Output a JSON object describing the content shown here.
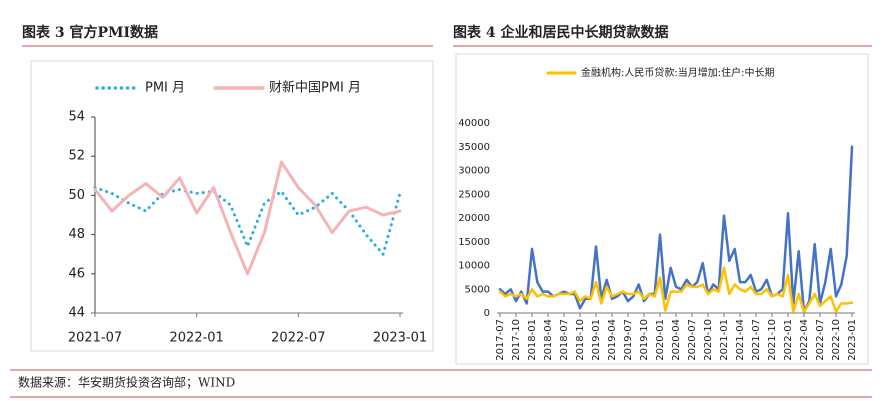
{
  "chart_data": [
    {
      "type": "line",
      "title": "图表 3 官方PMI数据",
      "categories": [
        "2021-07",
        null,
        null,
        null,
        null,
        null,
        "2022-01",
        null,
        null,
        null,
        null,
        null,
        "2022-07",
        null,
        null,
        null,
        null,
        null,
        "2023-01"
      ],
      "series": [
        {
          "name": "PMI 月",
          "color": "#2aaee0",
          "line_style": "dotted",
          "values": [
            50.4,
            50.1,
            49.6,
            49.2,
            50.1,
            50.3,
            50.1,
            50.2,
            49.5,
            47.4,
            49.6,
            50.2,
            49.0,
            49.4,
            50.1,
            49.2,
            48.0,
            47.0,
            50.1
          ]
        },
        {
          "name": "财新中国PMI 月",
          "color": "#f4b4b4",
          "line_style": "solid",
          "values": [
            50.3,
            49.2,
            50.0,
            50.6,
            49.9,
            50.9,
            49.1,
            50.4,
            48.1,
            46.0,
            48.1,
            51.7,
            50.4,
            49.5,
            48.1,
            49.2,
            49.4,
            49.0,
            49.2
          ]
        }
      ],
      "ylim": [
        44,
        54
      ],
      "yticks": [
        44,
        46,
        48,
        50,
        52,
        54
      ]
    },
    {
      "type": "line",
      "title": "图表 4 企业和居民中长期贷款数据",
      "categories": [
        "2017-07",
        null,
        null,
        "2017-10",
        null,
        null,
        "2018-01",
        null,
        null,
        "2018-04",
        null,
        null,
        "2018-07",
        null,
        null,
        "2018-10",
        null,
        null,
        "2019-01",
        null,
        null,
        "2019-04",
        null,
        null,
        "2019-07",
        null,
        null,
        "2019-10",
        null,
        null,
        "2020-01",
        null,
        null,
        "2020-04",
        null,
        null,
        "2020-07",
        null,
        null,
        "2020-10",
        null,
        null,
        "2021-01",
        null,
        null,
        "2021-04",
        null,
        null,
        "2021-07",
        null,
        null,
        "2021-10",
        null,
        null,
        "2022-01",
        null,
        null,
        "2022-04",
        null,
        null,
        "2022-07",
        null,
        null,
        "2022-10",
        null,
        null,
        "2023-01"
      ],
      "series": [
        {
          "color": "#4472c4",
          "line_style": "solid",
          "values": [
            5000,
            4000,
            5000,
            2500,
            4500,
            2000,
            13500,
            6500,
            4500,
            4500,
            3500,
            4000,
            4500,
            4000,
            4000,
            1000,
            3000,
            3000,
            14000,
            3000,
            7000,
            3000,
            3500,
            4500,
            2500,
            3500,
            6000,
            2500,
            4000,
            4000,
            16500,
            3000,
            9500,
            5500,
            5000,
            7000,
            5500,
            6500,
            10500,
            4000,
            6000,
            5000,
            20500,
            11000,
            13500,
            6500,
            6500,
            8000,
            4500,
            5000,
            7000,
            3500,
            4000,
            5000,
            21000,
            2000,
            13000,
            200,
            2500,
            14500,
            2000,
            6500,
            13500,
            3500,
            6000,
            12000,
            35000
          ]
        },
        {
          "name": "金融机构:人民币贷款:当月增加:住户:中长期",
          "color": "#ffc000",
          "line_style": "solid",
          "values": [
            4500,
            3500,
            4000,
            3500,
            4000,
            3000,
            5000,
            3500,
            4000,
            3500,
            3500,
            4000,
            4000,
            4000,
            4500,
            2500,
            3500,
            3000,
            6500,
            2000,
            5500,
            3500,
            4000,
            4500,
            4000,
            4000,
            4500,
            3000,
            4000,
            3500,
            7500,
            500,
            4500,
            4500,
            4500,
            6000,
            5500,
            5500,
            6000,
            4000,
            5000,
            4500,
            9500,
            4000,
            6000,
            5000,
            4500,
            5500,
            4000,
            4000,
            5000,
            3500,
            4000,
            3500,
            8000,
            300,
            4000,
            300,
            2000,
            4000,
            1500,
            2500,
            3500,
            300,
            2000,
            2000,
            2200
          ]
        }
      ],
      "ylim": [
        0,
        40000
      ],
      "yticks": [
        0,
        5000,
        10000,
        15000,
        20000,
        25000,
        30000,
        35000,
        40000
      ]
    }
  ],
  "source": "数据来源：华安期货投资咨询部；WIND"
}
